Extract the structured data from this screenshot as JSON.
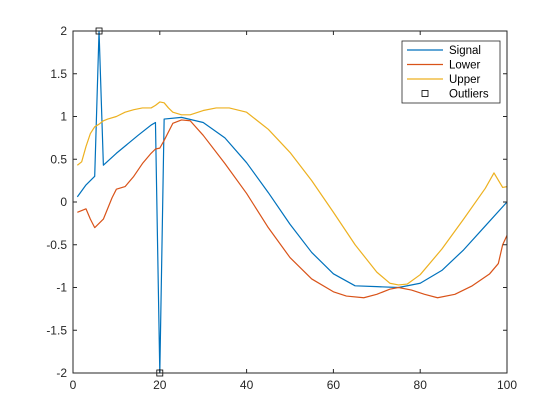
{
  "chart_data": {
    "type": "line",
    "xlim": [
      0,
      100
    ],
    "ylim": [
      -2,
      2
    ],
    "x_ticks": [
      0,
      20,
      40,
      60,
      80,
      100
    ],
    "y_ticks": [
      -2,
      -1.5,
      -1,
      -0.5,
      0,
      0.5,
      1,
      1.5,
      2
    ],
    "x_tick_labels": [
      "0",
      "20",
      "40",
      "60",
      "80",
      "100"
    ],
    "y_tick_labels": [
      "-2",
      "-1.5",
      "-1",
      "-0.5",
      "0",
      "0.5",
      "1",
      "1.5",
      "2"
    ],
    "grid": false,
    "legend_position": "top-right",
    "series": [
      {
        "name": "Signal",
        "color": "#0072BD",
        "x": [
          1,
          3,
          5,
          6,
          7,
          10,
          15,
          18,
          19,
          20,
          21,
          25,
          30,
          35,
          40,
          45,
          50,
          55,
          60,
          65,
          70,
          75,
          80,
          85,
          90,
          95,
          100
        ],
        "y": [
          0.06,
          0.2,
          0.3,
          2.0,
          0.43,
          0.57,
          0.78,
          0.9,
          0.93,
          -2.0,
          0.97,
          0.99,
          0.93,
          0.75,
          0.46,
          0.11,
          -0.26,
          -0.59,
          -0.84,
          -0.98,
          -0.99,
          -1.0,
          -0.95,
          -0.8,
          -0.56,
          -0.28,
          0.0
        ]
      },
      {
        "name": "Lower",
        "color": "#D95319",
        "x": [
          1,
          3,
          4,
          5,
          7,
          9,
          10,
          12,
          14,
          16,
          18,
          19,
          20,
          21,
          23,
          25,
          27,
          30,
          35,
          40,
          45,
          50,
          55,
          60,
          63,
          67,
          70,
          73,
          75,
          78,
          81,
          84,
          88,
          92,
          96,
          98,
          99,
          100
        ],
        "y": [
          -0.12,
          -0.08,
          -0.2,
          -0.3,
          -0.2,
          0.05,
          0.15,
          0.18,
          0.3,
          0.45,
          0.57,
          0.62,
          0.63,
          0.72,
          0.92,
          0.96,
          0.95,
          0.78,
          0.45,
          0.1,
          -0.3,
          -0.65,
          -0.9,
          -1.05,
          -1.1,
          -1.12,
          -1.08,
          -1.02,
          -1.0,
          -1.03,
          -1.08,
          -1.12,
          -1.08,
          -0.98,
          -0.84,
          -0.72,
          -0.5,
          -0.39
        ]
      },
      {
        "name": "Upper",
        "color": "#EDB120",
        "x": [
          1,
          2,
          3,
          4,
          5,
          6,
          7,
          8,
          10,
          12,
          14,
          16,
          17,
          18,
          19,
          20,
          21,
          22,
          23,
          25,
          27,
          30,
          33,
          36,
          40,
          45,
          50,
          55,
          60,
          65,
          70,
          73,
          75,
          77,
          80,
          85,
          90,
          95,
          97,
          99,
          100
        ],
        "y": [
          0.43,
          0.47,
          0.65,
          0.8,
          0.88,
          0.91,
          0.95,
          0.97,
          1.0,
          1.05,
          1.08,
          1.1,
          1.1,
          1.1,
          1.13,
          1.17,
          1.16,
          1.1,
          1.05,
          1.02,
          1.02,
          1.07,
          1.1,
          1.1,
          1.05,
          0.85,
          0.58,
          0.25,
          -0.12,
          -0.5,
          -0.82,
          -0.95,
          -0.97,
          -0.96,
          -0.85,
          -0.55,
          -0.2,
          0.16,
          0.34,
          0.17,
          0.18
        ]
      }
    ],
    "outliers": {
      "name": "Outliers",
      "color": "#000000",
      "marker": "square",
      "points": [
        {
          "x": 6,
          "y": 2.0
        },
        {
          "x": 20,
          "y": -2.0
        }
      ]
    }
  }
}
